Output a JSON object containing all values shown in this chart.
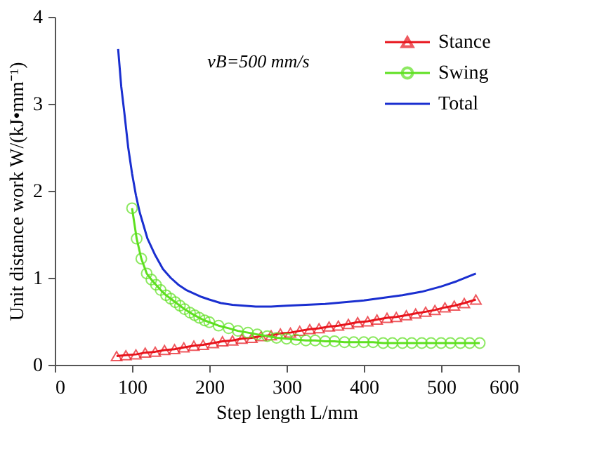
{
  "chart_data": {
    "type": "line",
    "xlabel": "Step length L/mm",
    "ylabel": "Unit distance work W/(kJ•mm⁻¹)",
    "annotations": [
      "vB=500 mm/s"
    ],
    "xlim": [
      0,
      600
    ],
    "ylim": [
      0,
      4
    ],
    "xticks": [
      0,
      100,
      200,
      300,
      400,
      500,
      600
    ],
    "yticks": [
      0,
      1,
      2,
      3,
      4
    ],
    "grid": false,
    "legend": "top right",
    "line_style": "solid",
    "series": [
      {
        "name": "Stance",
        "color": "#e8141c",
        "marker": "triangle",
        "x": [
          80,
          92,
          105,
          117,
          130,
          142,
          155,
          167,
          180,
          192,
          205,
          217,
          230,
          242,
          255,
          267,
          280,
          292,
          305,
          317,
          330,
          342,
          355,
          367,
          380,
          392,
          405,
          417,
          430,
          442,
          455,
          467,
          480,
          492,
          505,
          517,
          530,
          545
        ],
        "values": [
          0.1,
          0.11,
          0.12,
          0.14,
          0.15,
          0.17,
          0.18,
          0.2,
          0.22,
          0.23,
          0.25,
          0.27,
          0.28,
          0.3,
          0.31,
          0.33,
          0.34,
          0.36,
          0.37,
          0.39,
          0.41,
          0.42,
          0.44,
          0.45,
          0.47,
          0.49,
          0.5,
          0.52,
          0.54,
          0.55,
          0.57,
          0.59,
          0.61,
          0.63,
          0.66,
          0.68,
          0.71,
          0.75
        ]
      },
      {
        "name": "Swing",
        "color": "#5ee020",
        "marker": "circle",
        "x": [
          100,
          106,
          112,
          119,
          125,
          131,
          137,
          144,
          150,
          156,
          162,
          168,
          175,
          181,
          187,
          194,
          200,
          212,
          225,
          237,
          250,
          262,
          275,
          287,
          300,
          312,
          325,
          337,
          350,
          362,
          375,
          387,
          400,
          412,
          425,
          437,
          450,
          462,
          475,
          487,
          500,
          512,
          525,
          537,
          550
        ],
        "values": [
          1.8,
          1.45,
          1.22,
          1.05,
          0.98,
          0.92,
          0.86,
          0.8,
          0.76,
          0.72,
          0.68,
          0.64,
          0.6,
          0.57,
          0.54,
          0.51,
          0.49,
          0.45,
          0.42,
          0.39,
          0.37,
          0.35,
          0.33,
          0.31,
          0.3,
          0.29,
          0.28,
          0.28,
          0.27,
          0.27,
          0.26,
          0.26,
          0.26,
          0.26,
          0.25,
          0.25,
          0.25,
          0.25,
          0.25,
          0.25,
          0.25,
          0.25,
          0.25,
          0.25,
          0.25
        ]
      },
      {
        "name": "Total",
        "color": "#1a2fd0",
        "marker": "none",
        "x": [
          82,
          86,
          90,
          95,
          100,
          105,
          110,
          120,
          130,
          140,
          150,
          160,
          170,
          180,
          190,
          200,
          215,
          230,
          245,
          260,
          280,
          300,
          325,
          350,
          375,
          400,
          425,
          450,
          475,
          500,
          520,
          545
        ],
        "values": [
          3.63,
          3.2,
          2.9,
          2.5,
          2.2,
          1.95,
          1.75,
          1.45,
          1.26,
          1.1,
          1.0,
          0.92,
          0.86,
          0.82,
          0.78,
          0.75,
          0.71,
          0.69,
          0.68,
          0.67,
          0.67,
          0.68,
          0.69,
          0.7,
          0.72,
          0.74,
          0.77,
          0.8,
          0.84,
          0.9,
          0.96,
          1.05
        ]
      }
    ]
  }
}
